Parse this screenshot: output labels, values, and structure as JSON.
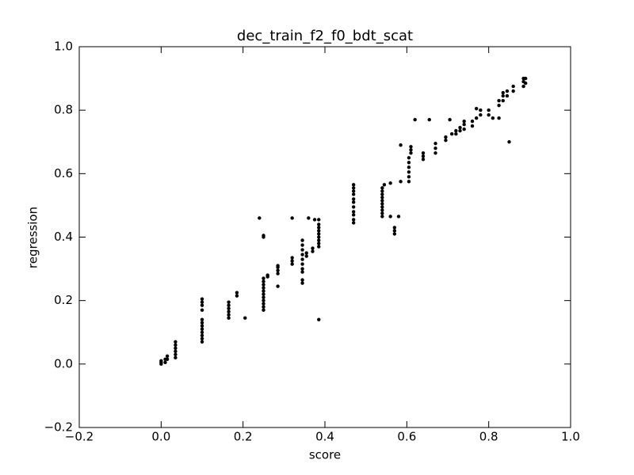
{
  "chart_data": {
    "type": "scatter",
    "title": "dec_train_f2_f0_bdt_scat",
    "x_label": "score",
    "y_label": "regression",
    "color": "#000000",
    "x": [
      0,
      0,
      0,
      0.01,
      0.01,
      0.015,
      0.015,
      0.035,
      0.035,
      0.035,
      0.035,
      0.035,
      0.035,
      0.1,
      0.1,
      0.1,
      0.1,
      0.1,
      0.1,
      0.1,
      0.1,
      0.1,
      0.1,
      0.1,
      0.1,
      0.165,
      0.165,
      0.165,
      0.165,
      0.165,
      0.165,
      0.185,
      0.185,
      0.205,
      0.24,
      0.25,
      0.25,
      0.25,
      0.25,
      0.25,
      0.25,
      0.25,
      0.25,
      0.25,
      0.25,
      0.25,
      0.25,
      0.25,
      0.26,
      0.26,
      0.285,
      0.285,
      0.285,
      0.285,
      0.285,
      0.32,
      0.32,
      0.32,
      0.32,
      0.345,
      0.345,
      0.345,
      0.345,
      0.345,
      0.345,
      0.345,
      0.345,
      0.345,
      0.345,
      0.355,
      0.355,
      0.36,
      0.37,
      0.37,
      0.375,
      0.385,
      0.385,
      0.385,
      0.385,
      0.385,
      0.385,
      0.385,
      0.385,
      0.385,
      0.385,
      0.47,
      0.47,
      0.47,
      0.47,
      0.47,
      0.47,
      0.47,
      0.47,
      0.47,
      0.47,
      0.47,
      0.54,
      0.54,
      0.54,
      0.54,
      0.54,
      0.54,
      0.54,
      0.54,
      0.54,
      0.54,
      0.545,
      0.56,
      0.56,
      0.57,
      0.57,
      0.57,
      0.58,
      0.585,
      0.585,
      0.605,
      0.605,
      0.605,
      0.605,
      0.605,
      0.605,
      0.61,
      0.61,
      0.61,
      0.62,
      0.64,
      0.64,
      0.64,
      0.655,
      0.67,
      0.67,
      0.67,
      0.695,
      0.695,
      0.705,
      0.71,
      0.72,
      0.72,
      0.73,
      0.73,
      0.74,
      0.74,
      0.74,
      0.76,
      0.76,
      0.77,
      0.77,
      0.78,
      0.78,
      0.8,
      0.8,
      0.81,
      0.825,
      0.825,
      0.825,
      0.835,
      0.835,
      0.835,
      0.845,
      0.845,
      0.85,
      0.86,
      0.86,
      0.885,
      0.885,
      0.885,
      0.89,
      0.89
    ],
    "values": [
      0,
      0.005,
      0.01,
      0.005,
      0.015,
      0.015,
      0.025,
      0.02,
      0.03,
      0.04,
      0.05,
      0.06,
      0.07,
      0.07,
      0.08,
      0.09,
      0.1,
      0.11,
      0.12,
      0.13,
      0.14,
      0.17,
      0.185,
      0.195,
      0.205,
      0.145,
      0.155,
      0.165,
      0.175,
      0.185,
      0.195,
      0.215,
      0.225,
      0.145,
      0.46,
      0.17,
      0.18,
      0.19,
      0.2,
      0.21,
      0.22,
      0.23,
      0.24,
      0.25,
      0.26,
      0.27,
      0.4,
      0.405,
      0.275,
      0.28,
      0.285,
      0.295,
      0.305,
      0.31,
      0.245,
      0.315,
      0.325,
      0.335,
      0.46,
      0.255,
      0.265,
      0.29,
      0.3,
      0.315,
      0.33,
      0.345,
      0.36,
      0.375,
      0.39,
      0.34,
      0.35,
      0.46,
      0.355,
      0.365,
      0.455,
      0.37,
      0.38,
      0.39,
      0.4,
      0.41,
      0.42,
      0.43,
      0.44,
      0.455,
      0.14,
      0.445,
      0.455,
      0.47,
      0.48,
      0.495,
      0.51,
      0.52,
      0.535,
      0.545,
      0.555,
      0.565,
      0.465,
      0.475,
      0.485,
      0.495,
      0.505,
      0.515,
      0.525,
      0.535,
      0.545,
      0.555,
      0.565,
      0.57,
      0.465,
      0.41,
      0.42,
      0.43,
      0.465,
      0.575,
      0.69,
      0.575,
      0.59,
      0.605,
      0.62,
      0.635,
      0.65,
      0.665,
      0.675,
      0.685,
      0.77,
      0.645,
      0.655,
      0.665,
      0.77,
      0.665,
      0.68,
      0.695,
      0.705,
      0.715,
      0.77,
      0.725,
      0.725,
      0.735,
      0.735,
      0.745,
      0.74,
      0.755,
      0.765,
      0.75,
      0.765,
      0.805,
      0.775,
      0.785,
      0.8,
      0.785,
      0.8,
      0.775,
      0.775,
      0.815,
      0.83,
      0.83,
      0.845,
      0.855,
      0.845,
      0.86,
      0.7,
      0.86,
      0.875,
      0.875,
      0.89,
      0.9,
      0.885,
      0.9
    ],
    "xlim": [
      -0.2,
      1.0
    ],
    "ylim": [
      -0.2,
      1.0
    ],
    "xticks": [
      {
        "value": -0.2,
        "label": "−0.2"
      },
      {
        "value": 0,
        "label": "0.0"
      },
      0.2,
      0.4,
      0.6,
      0.8,
      {
        "value": 1,
        "label": "1.0"
      }
    ],
    "yticks": [
      {
        "value": -0.2,
        "label": "−0.2"
      },
      {
        "value": 0,
        "label": "0.0"
      },
      0.2,
      0.4,
      0.6,
      0.8,
      {
        "value": 1,
        "label": "1.0"
      }
    ],
    "grid": false
  }
}
